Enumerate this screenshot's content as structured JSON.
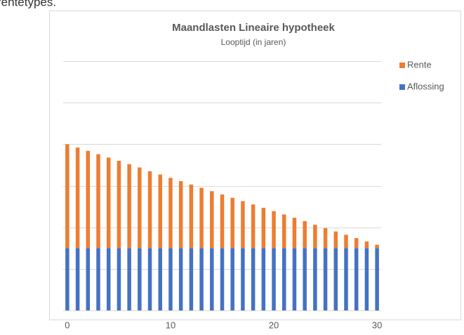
{
  "page_text": "rentetypes.",
  "chart_data": {
    "type": "stacked-bar",
    "title": "Maandlasten Lineaire hypotheek",
    "subtitle": "Looptijd (in jaren)",
    "x": [
      0,
      1,
      2,
      3,
      4,
      5,
      6,
      7,
      8,
      9,
      10,
      11,
      12,
      13,
      14,
      15,
      16,
      17,
      18,
      19,
      20,
      21,
      22,
      23,
      24,
      25,
      26,
      27,
      28,
      29,
      30
    ],
    "xlim": [
      -0.4,
      30.4
    ],
    "xticks": [
      0,
      10,
      20,
      30
    ],
    "ylim": [
      0,
      6
    ],
    "yticks": [
      0,
      1,
      2,
      3,
      4,
      5,
      6
    ],
    "grid": true,
    "legend": "right",
    "series": [
      {
        "name": "Aflossing",
        "color": "#4472c4",
        "values": [
          1.5,
          1.5,
          1.5,
          1.5,
          1.5,
          1.5,
          1.5,
          1.5,
          1.5,
          1.5,
          1.5,
          1.5,
          1.5,
          1.5,
          1.5,
          1.5,
          1.5,
          1.5,
          1.5,
          1.5,
          1.5,
          1.5,
          1.5,
          1.5,
          1.5,
          1.5,
          1.5,
          1.5,
          1.5,
          1.5,
          1.5
        ]
      },
      {
        "name": "Rente",
        "color": "#ed7d31",
        "values": [
          2.5,
          2.42,
          2.34,
          2.26,
          2.18,
          2.1,
          2.02,
          1.94,
          1.85,
          1.77,
          1.69,
          1.61,
          1.53,
          1.45,
          1.37,
          1.29,
          1.21,
          1.13,
          1.05,
          0.97,
          0.89,
          0.81,
          0.73,
          0.65,
          0.56,
          0.48,
          0.4,
          0.32,
          0.24,
          0.16,
          0.08
        ]
      }
    ]
  }
}
